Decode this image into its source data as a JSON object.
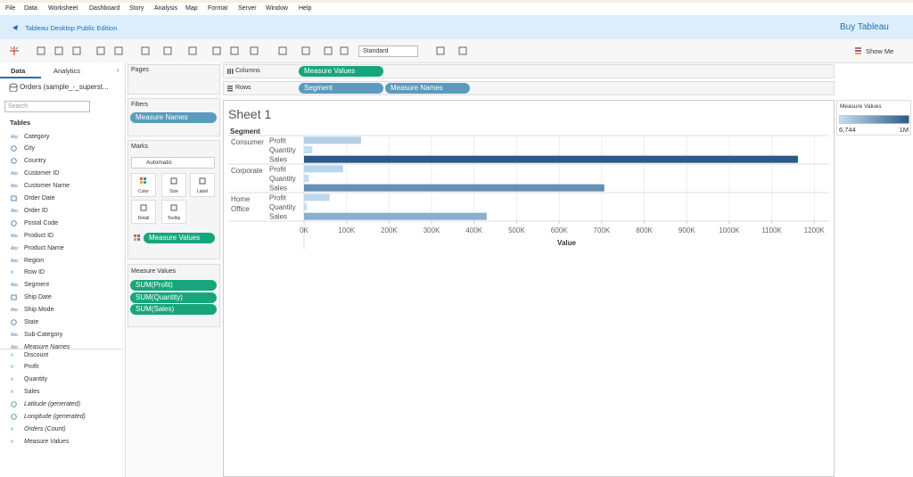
{
  "menu": [
    "File",
    "Data",
    "Worksheet",
    "Dashboard",
    "Story",
    "Analysis",
    "Map",
    "Format",
    "Server",
    "Window",
    "Help"
  ],
  "header": {
    "title": "Tableau Desktop Public Edition",
    "buy": "Buy Tableau"
  },
  "toolbar": {
    "fit": "Standard",
    "show_me": "Show Me"
  },
  "data_pane": {
    "tabs": [
      "Data",
      "Analytics"
    ],
    "source": "Orders (sample_-_superst...",
    "search_placeholder": "Search",
    "section": "Tables",
    "icons": {
      "string": "Abc",
      "number": "#"
    },
    "dimensions": [
      {
        "name": "Category",
        "kind": "string"
      },
      {
        "name": "City",
        "kind": "geo"
      },
      {
        "name": "Country",
        "kind": "geo"
      },
      {
        "name": "Customer ID",
        "kind": "string"
      },
      {
        "name": "Customer Name",
        "kind": "string"
      },
      {
        "name": "Order Date",
        "kind": "date"
      },
      {
        "name": "Order ID",
        "kind": "string"
      },
      {
        "name": "Postal Code",
        "kind": "geo"
      },
      {
        "name": "Product ID",
        "kind": "string"
      },
      {
        "name": "Product Name",
        "kind": "string"
      },
      {
        "name": "Region",
        "kind": "string"
      },
      {
        "name": "Row ID",
        "kind": "number"
      },
      {
        "name": "Segment",
        "kind": "string"
      },
      {
        "name": "Ship Date",
        "kind": "date"
      },
      {
        "name": "Ship Mode",
        "kind": "string"
      },
      {
        "name": "State",
        "kind": "geo"
      },
      {
        "name": "Sub-Category",
        "kind": "string"
      },
      {
        "name": "Measure Names",
        "kind": "string",
        "italic": true
      }
    ],
    "measures": [
      {
        "name": "Discount",
        "kind": "number"
      },
      {
        "name": "Profit",
        "kind": "number"
      },
      {
        "name": "Quantity",
        "kind": "number"
      },
      {
        "name": "Sales",
        "kind": "number"
      },
      {
        "name": "Latitude (generated)",
        "kind": "geo",
        "italic": true
      },
      {
        "name": "Longitude (generated)",
        "kind": "geo",
        "italic": true
      },
      {
        "name": "Orders (Count)",
        "kind": "number",
        "italic": true
      },
      {
        "name": "Measure Values",
        "kind": "number",
        "italic": true
      }
    ]
  },
  "cards": {
    "pages": "Pages",
    "filters": {
      "title": "Filters",
      "pills": [
        {
          "text": "Measure Names",
          "color": "#5a9bbd"
        }
      ]
    },
    "marks": {
      "title": "Marks",
      "mark_type": "Automatic",
      "buttons": [
        "Color",
        "Size",
        "Label",
        "Detail",
        "Tooltip"
      ],
      "pills": [
        {
          "text": "Measure Values",
          "color": "#17a67b"
        }
      ]
    },
    "measure_values": {
      "title": "Measure Values",
      "pills": [
        {
          "text": "SUM(Profit)",
          "color": "#17a67b"
        },
        {
          "text": "SUM(Quantity)",
          "color": "#17a67b"
        },
        {
          "text": "SUM(Sales)",
          "color": "#17a67b"
        }
      ]
    }
  },
  "shelves": {
    "columns": {
      "label": "Columns",
      "pills": [
        {
          "text": "Measure Values",
          "color": "#17a67b"
        }
      ]
    },
    "rows": {
      "label": "Rows",
      "pills": [
        {
          "text": "Segment",
          "color": "#5a9bbd"
        },
        {
          "text": "Measure Names",
          "color": "#5a9bbd"
        }
      ]
    }
  },
  "chart_data": {
    "type": "bar",
    "orientation": "horizontal",
    "title": "Sheet 1",
    "row_header": "Segment",
    "categories": [
      "Consumer",
      "Corporate",
      "Home Office"
    ],
    "series": [
      {
        "name": "Profit",
        "values": [
          134119,
          91979,
          60299
        ]
      },
      {
        "name": "Quantity",
        "values": [
          19521,
          11608,
          6744
        ]
      },
      {
        "name": "Sales",
        "values": [
          1161401,
          706146,
          429653
        ]
      }
    ],
    "xlabel": "Value",
    "xlim": [
      0,
      1235000
    ],
    "xticks": [
      {
        "value": 0,
        "label": "0K"
      },
      {
        "value": 100000,
        "label": "100K"
      },
      {
        "value": 200000,
        "label": "200K"
      },
      {
        "value": 300000,
        "label": "300K"
      },
      {
        "value": 400000,
        "label": "400K"
      },
      {
        "value": 500000,
        "label": "500K"
      },
      {
        "value": 600000,
        "label": "600K"
      },
      {
        "value": 700000,
        "label": "700K"
      },
      {
        "value": 800000,
        "label": "800K"
      },
      {
        "value": 900000,
        "label": "900K"
      },
      {
        "value": 1000000,
        "label": "1000K"
      },
      {
        "value": 1100000,
        "label": "1100K"
      },
      {
        "value": 1200000,
        "label": "1200K"
      }
    ],
    "grid": true,
    "legend": {
      "title": "Measure Values",
      "min": {
        "value": 6744,
        "label": "6,744"
      },
      "max": {
        "value": 1161401,
        "label": "1M"
      },
      "colors": [
        "#c4dff3",
        "#2a5a8a"
      ],
      "corner": "right"
    }
  }
}
